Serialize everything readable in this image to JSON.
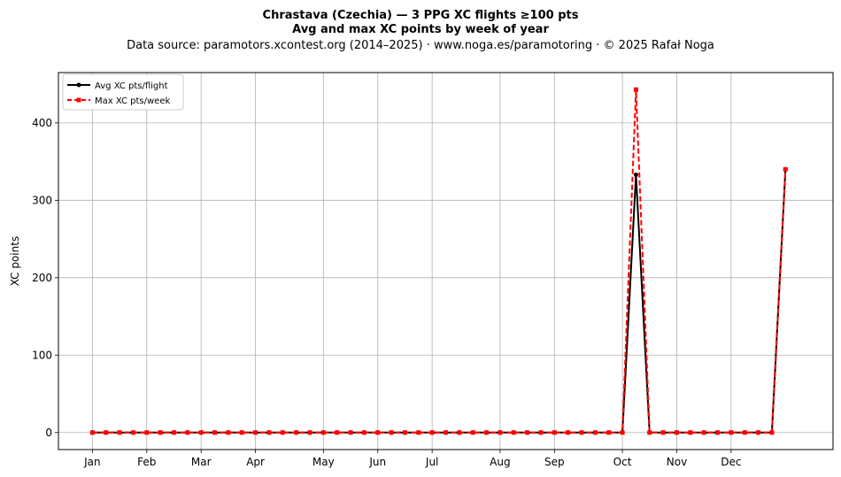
{
  "chart_data": {
    "type": "line",
    "title_lines": [
      "Chrastava (Czechia)  —  3 PPG XC flights ≥100 pts",
      "Avg and max XC points by week of year",
      "Data source: paramotors.xcontest.org (2014–2025)  ·  www.noga.es/paramotoring  ·  © 2025 Rafał Noga"
    ],
    "xlabel": "",
    "ylabel": "XC points",
    "x_tick_labels": [
      "Jan",
      "Feb",
      "Mar",
      "Apr",
      "May",
      "Jun",
      "Jul",
      "Aug",
      "Sep",
      "Oct",
      "Nov",
      "Dec"
    ],
    "x_tick_weeks": [
      1,
      5,
      9,
      13,
      18,
      22,
      26,
      31,
      35,
      40,
      44,
      48
    ],
    "y_ticks": [
      0,
      100,
      200,
      300,
      400
    ],
    "xlim": [
      -1.5,
      55.5
    ],
    "ylim": [
      -22,
      465
    ],
    "grid": true,
    "legend_position": "top-left",
    "x_weeks": [
      1,
      2,
      3,
      4,
      5,
      6,
      7,
      8,
      9,
      10,
      11,
      12,
      13,
      14,
      15,
      16,
      17,
      18,
      19,
      20,
      21,
      22,
      23,
      24,
      25,
      26,
      27,
      28,
      29,
      30,
      31,
      32,
      33,
      34,
      35,
      36,
      37,
      38,
      39,
      40,
      41,
      42,
      43,
      44,
      45,
      46,
      47,
      48,
      49,
      50,
      51,
      52
    ],
    "series": [
      {
        "name": "Avg XC pts/flight",
        "color": "#000000",
        "style": "solid",
        "marker": "circle",
        "values": [
          0,
          0,
          0,
          0,
          0,
          0,
          0,
          0,
          0,
          0,
          0,
          0,
          0,
          0,
          0,
          0,
          0,
          0,
          0,
          0,
          0,
          0,
          0,
          0,
          0,
          0,
          0,
          0,
          0,
          0,
          0,
          0,
          0,
          0,
          0,
          0,
          0,
          0,
          0,
          0,
          333,
          0,
          0,
          0,
          0,
          0,
          0,
          0,
          0,
          0,
          0,
          340
        ]
      },
      {
        "name": "Max XC pts/week",
        "color": "#ff0000",
        "style": "dashed",
        "marker": "square",
        "values": [
          0,
          0,
          0,
          0,
          0,
          0,
          0,
          0,
          0,
          0,
          0,
          0,
          0,
          0,
          0,
          0,
          0,
          0,
          0,
          0,
          0,
          0,
          0,
          0,
          0,
          0,
          0,
          0,
          0,
          0,
          0,
          0,
          0,
          0,
          0,
          0,
          0,
          0,
          0,
          0,
          443,
          0,
          0,
          0,
          0,
          0,
          0,
          0,
          0,
          0,
          0,
          340
        ]
      }
    ]
  }
}
